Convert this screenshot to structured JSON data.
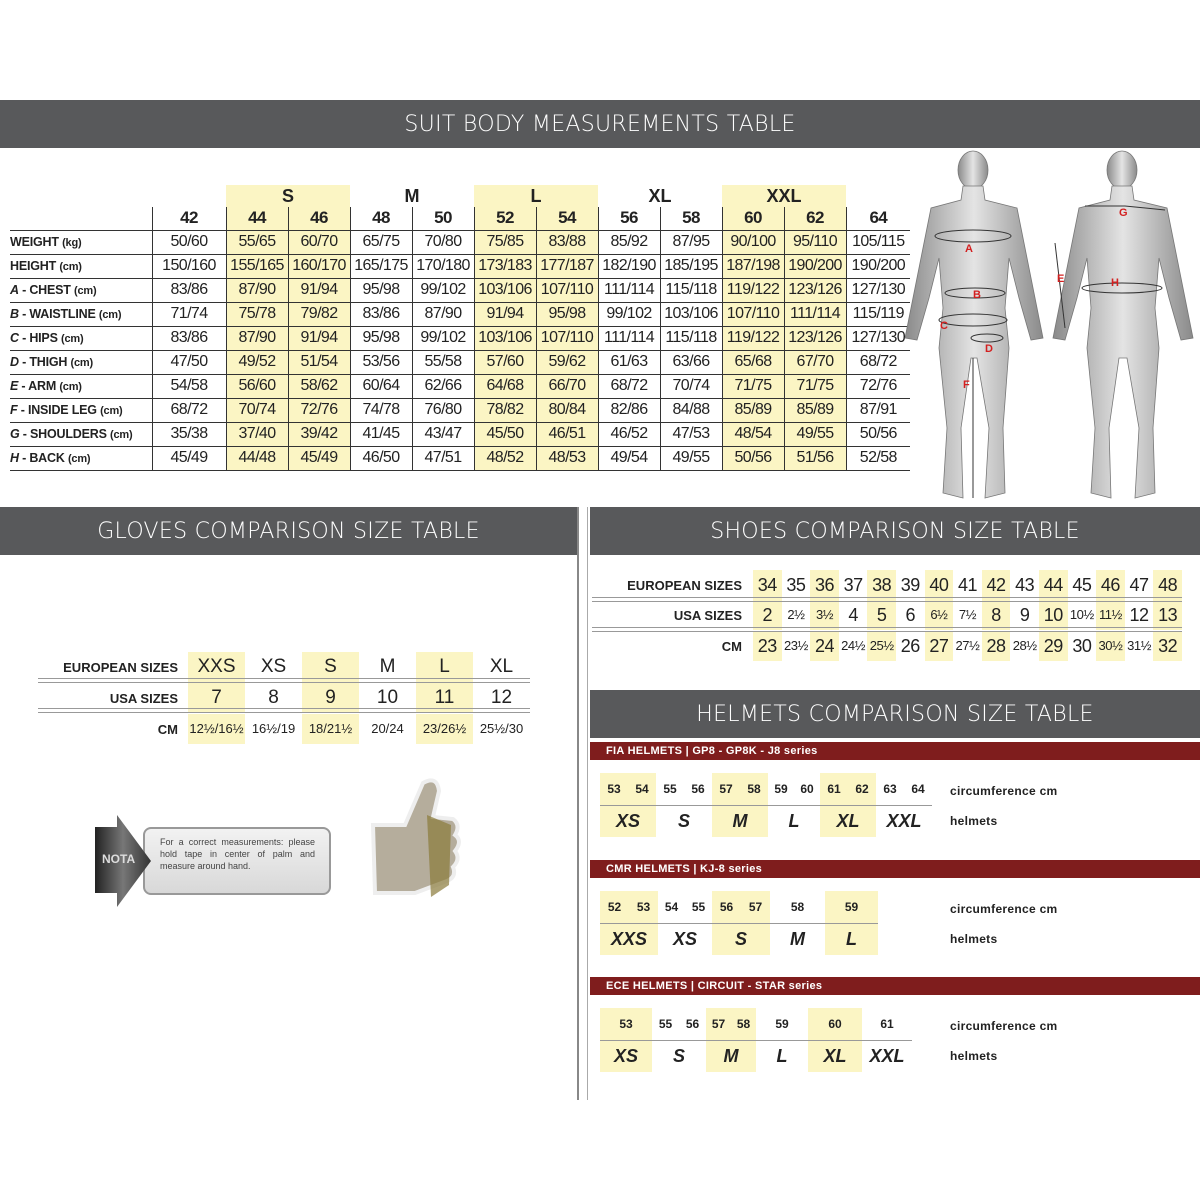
{
  "colors": {
    "header_bg": "#58595b",
    "highlight": "#fbf5c4",
    "helmet_bar": "#7f1d1d",
    "figure_letters": "#d32020"
  },
  "suit": {
    "title": "SUIT BODY MEASUREMENTS TABLE",
    "groups": [
      {
        "label": "S",
        "sizes": [
          "44",
          "46"
        ]
      },
      {
        "label": "M",
        "sizes": [
          "48",
          "50"
        ]
      },
      {
        "label": "L",
        "sizes": [
          "52",
          "54"
        ]
      },
      {
        "label": "XL",
        "sizes": [
          "56",
          "58"
        ]
      },
      {
        "label": "XXL",
        "sizes": [
          "60",
          "62"
        ]
      }
    ],
    "sizes": [
      "42",
      "44",
      "46",
      "48",
      "50",
      "52",
      "54",
      "56",
      "58",
      "60",
      "62",
      "64"
    ],
    "highlighted_sizes": [
      "44",
      "46",
      "52",
      "54",
      "60",
      "62"
    ],
    "rows": [
      {
        "letter": "",
        "label": "WEIGHT",
        "unit": "(kg)",
        "values": [
          "50/60",
          "55/65",
          "60/70",
          "65/75",
          "70/80",
          "75/85",
          "83/88",
          "85/92",
          "87/95",
          "90/100",
          "95/110",
          "105/115"
        ]
      },
      {
        "letter": "",
        "label": "HEIGHT",
        "unit": "(cm)",
        "values": [
          "150/160",
          "155/165",
          "160/170",
          "165/175",
          "170/180",
          "173/183",
          "177/187",
          "182/190",
          "185/195",
          "187/198",
          "190/200",
          "190/200"
        ]
      },
      {
        "letter": "A",
        "label": " - CHEST",
        "unit": "(cm)",
        "values": [
          "83/86",
          "87/90",
          "91/94",
          "95/98",
          "99/102",
          "103/106",
          "107/110",
          "111/114",
          "115/118",
          "119/122",
          "123/126",
          "127/130"
        ]
      },
      {
        "letter": "B",
        "label": " - WAISTLINE",
        "unit": "(cm)",
        "values": [
          "71/74",
          "75/78",
          "79/82",
          "83/86",
          "87/90",
          "91/94",
          "95/98",
          "99/102",
          "103/106",
          "107/110",
          "111/114",
          "115/119"
        ]
      },
      {
        "letter": "C",
        "label": " - HIPS",
        "unit": "(cm)",
        "values": [
          "83/86",
          "87/90",
          "91/94",
          "95/98",
          "99/102",
          "103/106",
          "107/110",
          "111/114",
          "115/118",
          "119/122",
          "123/126",
          "127/130"
        ]
      },
      {
        "letter": "D",
        "label": " - THIGH",
        "unit": "(cm)",
        "values": [
          "47/50",
          "49/52",
          "51/54",
          "53/56",
          "55/58",
          "57/60",
          "59/62",
          "61/63",
          "63/66",
          "65/68",
          "67/70",
          "68/72"
        ]
      },
      {
        "letter": "E",
        "label": " - ARM",
        "unit": "(cm)",
        "values": [
          "54/58",
          "56/60",
          "58/62",
          "60/64",
          "62/66",
          "64/68",
          "66/70",
          "68/72",
          "70/74",
          "71/75",
          "71/75",
          "72/76"
        ]
      },
      {
        "letter": "F",
        "label": " - INSIDE LEG",
        "unit": "(cm)",
        "values": [
          "68/72",
          "70/74",
          "72/76",
          "74/78",
          "76/80",
          "78/82",
          "80/84",
          "82/86",
          "84/88",
          "85/89",
          "85/89",
          "87/91"
        ]
      },
      {
        "letter": "G",
        "label": " - SHOULDERS",
        "unit": "(cm)",
        "values": [
          "35/38",
          "37/40",
          "39/42",
          "41/45",
          "43/47",
          "45/50",
          "46/51",
          "46/52",
          "47/53",
          "48/54",
          "49/55",
          "50/56"
        ]
      },
      {
        "letter": "H",
        "label": " - BACK",
        "unit": "(cm)",
        "values": [
          "45/49",
          "44/48",
          "45/49",
          "46/50",
          "47/51",
          "48/52",
          "48/53",
          "49/54",
          "49/55",
          "50/56",
          "51/56",
          "52/58"
        ]
      }
    ],
    "figure_letters": [
      "A",
      "B",
      "C",
      "D",
      "E",
      "F",
      "G",
      "H"
    ]
  },
  "gloves": {
    "title": "GLOVES COMPARISON SIZE TABLE",
    "rows": [
      {
        "label": "EUROPEAN SIZES",
        "values": [
          "XXS",
          "XS",
          "S",
          "M",
          "L",
          "XL"
        ]
      },
      {
        "label": "USA SIZES",
        "values": [
          "7",
          "8",
          "9",
          "10",
          "11",
          "12"
        ]
      },
      {
        "label": "CM",
        "values": [
          "12½/16½",
          "16½/19",
          "18/21½",
          "20/24",
          "23/26½",
          "25½/30"
        ]
      }
    ],
    "highlighted_columns": [
      0,
      2,
      4
    ],
    "note": {
      "badge": "NOTA",
      "text": "For a correct measurements: please hold tape in center of palm and measure around hand."
    }
  },
  "shoes": {
    "title": "SHOES COMPARISON SIZE TABLE",
    "rows": [
      {
        "label": "EUROPEAN SIZES",
        "values": [
          "34",
          "35",
          "36",
          "37",
          "38",
          "39",
          "40",
          "41",
          "42",
          "43",
          "44",
          "45",
          "46",
          "47",
          "48"
        ]
      },
      {
        "label": "USA SIZES",
        "values": [
          "2",
          "2½",
          "3½",
          "4",
          "5",
          "6",
          "6½",
          "7½",
          "8",
          "9",
          "10",
          "10½",
          "11½",
          "12",
          "13"
        ]
      },
      {
        "label": "CM",
        "values": [
          "23",
          "23½",
          "24",
          "24½",
          "25½",
          "26",
          "27",
          "27½",
          "28",
          "28½",
          "29",
          "30",
          "30½",
          "31½",
          "32"
        ]
      }
    ],
    "highlighted_columns": [
      0,
      2,
      4,
      6,
      8,
      10,
      12,
      14
    ]
  },
  "helmets": {
    "title": "HELMETS COMPARISON SIZE TABLE",
    "circumference_label": "circumference cm",
    "size_label": "helmets",
    "series": [
      {
        "title": "FIA HELMETS | GP8 - GP8K - J8 series",
        "groups": [
          {
            "size": "XS",
            "circumference": [
              "53",
              "54"
            ],
            "highlight": true
          },
          {
            "size": "S",
            "circumference": [
              "55",
              "56"
            ],
            "highlight": false
          },
          {
            "size": "M",
            "circumference": [
              "57",
              "58"
            ],
            "highlight": true
          },
          {
            "size": "L",
            "circumference": [
              "59",
              "60"
            ],
            "highlight": false
          },
          {
            "size": "XL",
            "circumference": [
              "61",
              "62"
            ],
            "highlight": true
          },
          {
            "size": "XXL",
            "circumference": [
              "63",
              "64"
            ],
            "highlight": false
          }
        ]
      },
      {
        "title": "CMR HELMETS | KJ-8 series",
        "groups": [
          {
            "size": "XXS",
            "circumference": [
              "52",
              "53"
            ],
            "highlight": true
          },
          {
            "size": "XS",
            "circumference": [
              "54",
              "55"
            ],
            "highlight": false
          },
          {
            "size": "S",
            "circumference": [
              "56",
              "57"
            ],
            "highlight": true
          },
          {
            "size": "M",
            "circumference": [
              "58"
            ],
            "highlight": false
          },
          {
            "size": "L",
            "circumference": [
              "59"
            ],
            "highlight": true
          }
        ]
      },
      {
        "title": "ECE HELMETS | CIRCUIT - STAR series",
        "groups": [
          {
            "size": "XS",
            "circumference": [
              "53"
            ],
            "highlight": true
          },
          {
            "size": "S",
            "circumference": [
              "55",
              "56"
            ],
            "highlight": false
          },
          {
            "size": "M",
            "circumference": [
              "57",
              "58"
            ],
            "highlight": true
          },
          {
            "size": "L",
            "circumference": [
              "59"
            ],
            "highlight": false
          },
          {
            "size": "XL",
            "circumference": [
              "60"
            ],
            "highlight": true
          },
          {
            "size": "XXL",
            "circumference": [
              "61"
            ],
            "highlight": false
          }
        ]
      }
    ]
  }
}
